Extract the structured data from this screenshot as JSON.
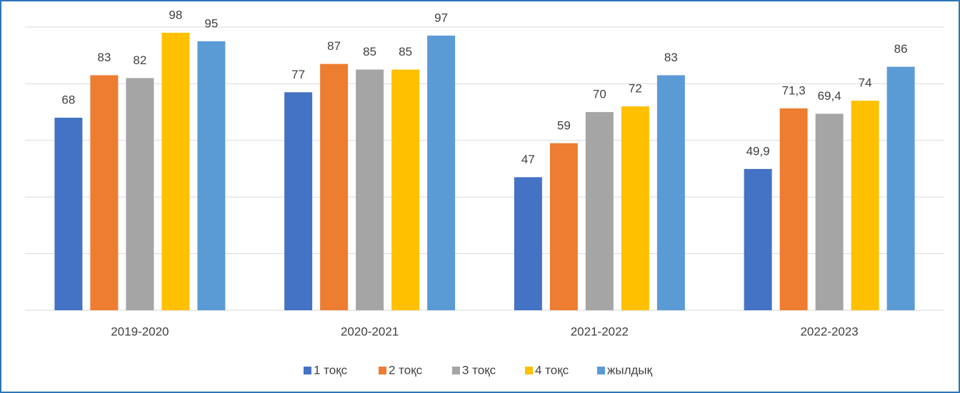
{
  "chart_data": {
    "type": "bar",
    "categories": [
      "2019-2020",
      "2020-2021",
      "2021-2022",
      "2022-2023"
    ],
    "series": [
      {
        "name": "1 тоқс",
        "color": "#4472c4",
        "values": [
          68,
          77,
          47,
          49.9
        ],
        "value_labels": [
          "68",
          "77",
          "47",
          "49,9"
        ]
      },
      {
        "name": "2 тоқс",
        "color": "#ed7d31",
        "values": [
          83,
          87,
          59,
          71.3
        ],
        "value_labels": [
          "83",
          "87",
          "59",
          "71,3"
        ]
      },
      {
        "name": "3 тоқс",
        "color": "#a5a5a5",
        "values": [
          82,
          85,
          70,
          69.4
        ],
        "value_labels": [
          "82",
          "85",
          "70",
          "69,4"
        ]
      },
      {
        "name": "4 тоқс",
        "color": "#ffc000",
        "values": [
          98,
          85,
          72,
          74
        ],
        "value_labels": [
          "98",
          "85",
          "72",
          "74"
        ]
      },
      {
        "name": "жылдық",
        "color": "#5b9bd5",
        "values": [
          95,
          97,
          83,
          86
        ],
        "value_labels": [
          "95",
          "97",
          "83",
          "86"
        ]
      }
    ],
    "ylim": [
      0,
      100
    ],
    "yticks": [
      0,
      20,
      40,
      60,
      80,
      100
    ],
    "grid": true,
    "legend": "bottom"
  }
}
